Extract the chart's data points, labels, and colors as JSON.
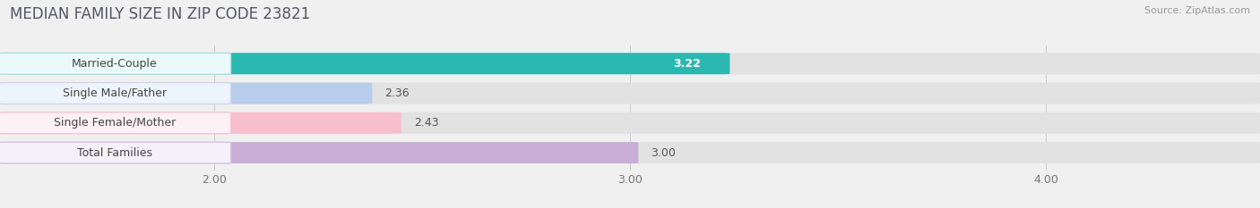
{
  "title": "MEDIAN FAMILY SIZE IN ZIP CODE 23821",
  "source": "Source: ZipAtlas.com",
  "categories": [
    "Married-Couple",
    "Single Male/Father",
    "Single Female/Mother",
    "Total Families"
  ],
  "values": [
    3.22,
    2.36,
    2.43,
    3.0
  ],
  "bar_colors": [
    "#2ab8b0",
    "#b8ccec",
    "#f7bfce",
    "#c9aed8"
  ],
  "label_bg_colors": [
    "#eafafa",
    "#eef4fc",
    "#fef1f5",
    "#f6f0fb"
  ],
  "label_border_colors": [
    "#b0e0de",
    "#c8d8f0",
    "#f0c8d4",
    "#d8c0e8"
  ],
  "xlim_min": 1.5,
  "xlim_max": 4.5,
  "xticks": [
    2.0,
    3.0,
    4.0
  ],
  "xtick_labels": [
    "2.00",
    "3.00",
    "4.00"
  ],
  "bar_height": 0.68,
  "title_fontsize": 12,
  "source_fontsize": 8,
  "label_fontsize": 9,
  "value_fontsize": 9,
  "tick_fontsize": 9,
  "background_color": "#f0f0f0",
  "bar_bg_color": "#e2e2e2",
  "value_inside_color": "white",
  "value_outside_color": "#555555"
}
